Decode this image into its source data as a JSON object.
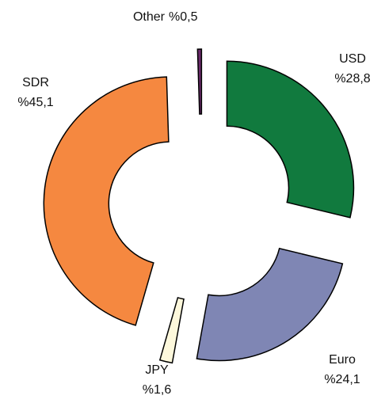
{
  "chart_data": {
    "type": "donut",
    "categories": [
      "USD",
      "Euro",
      "JPY",
      "SDR",
      "Other"
    ],
    "values": [
      28.8,
      24.1,
      1.6,
      45.1,
      0.5
    ],
    "value_labels": [
      "%28,8",
      "%24,1",
      "%1,6",
      "%45,1",
      "%0,5"
    ],
    "colors": [
      "#117a3e",
      "#7f86b4",
      "#fdf8dc",
      "#f58840",
      "#6b2a6b"
    ]
  }
}
